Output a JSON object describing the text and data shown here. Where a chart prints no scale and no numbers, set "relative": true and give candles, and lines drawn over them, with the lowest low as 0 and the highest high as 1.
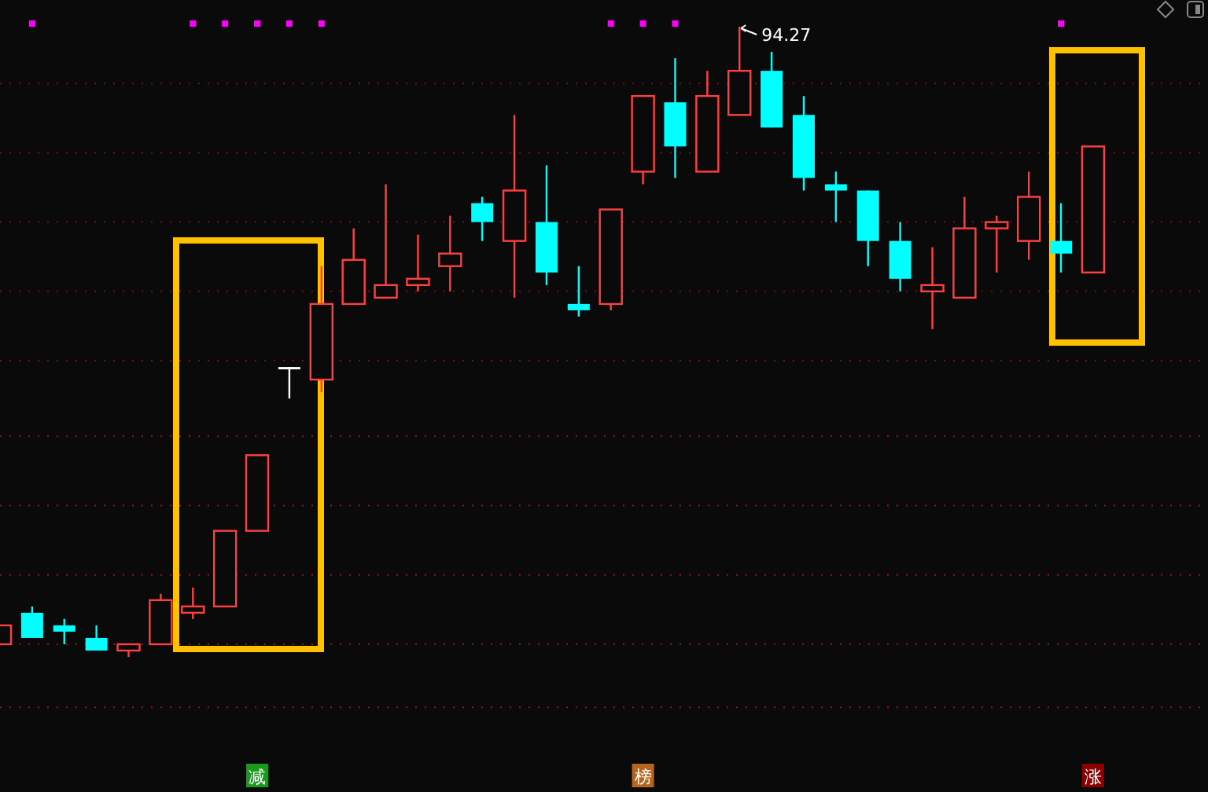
{
  "chart_data": {
    "type": "candlestick",
    "relative": true,
    "categories": [
      null,
      null,
      null,
      null,
      null,
      null,
      null,
      null,
      null,
      null,
      null,
      null,
      null,
      null,
      null,
      null,
      null,
      null,
      null,
      null,
      null,
      null,
      null,
      null,
      null,
      null,
      null,
      null,
      null,
      null,
      null,
      null,
      null,
      null,
      null
    ],
    "ohlc": [
      [
        0.02,
        0.05,
        0.02,
        0.05
      ],
      [
        0.07,
        0.08,
        0.03,
        0.03
      ],
      [
        0.05,
        0.06,
        0.02,
        0.04
      ],
      [
        0.03,
        0.05,
        0.01,
        0.01
      ],
      [
        0.01,
        0.02,
        0,
        0.02
      ],
      [
        0.02,
        0.1,
        0.02,
        0.09
      ],
      [
        0.07,
        0.11,
        0.06,
        0.08
      ],
      [
        0.08,
        0.2,
        0.08,
        0.2
      ],
      [
        0.2,
        0.32,
        0.2,
        0.32
      ],
      [
        0.46,
        0.46,
        0.41,
        0.46
      ],
      [
        0.44,
        0.62,
        0.42,
        0.56
      ],
      [
        0.56,
        0.68,
        0.56,
        0.63
      ],
      [
        0.57,
        0.75,
        0.57,
        0.59
      ],
      [
        0.59,
        0.67,
        0.58,
        0.6
      ],
      [
        0.62,
        0.7,
        0.58,
        0.64
      ],
      [
        0.72,
        0.73,
        0.66,
        0.69
      ],
      [
        0.66,
        0.86,
        0.57,
        0.74
      ],
      [
        0.69,
        0.78,
        0.59,
        0.61
      ],
      [
        0.56,
        0.62,
        0.54,
        0.55
      ],
      [
        0.56,
        0.71,
        0.55,
        0.71
      ],
      [
        0.77,
        0.89,
        0.75,
        0.89
      ],
      [
        0.88,
        0.95,
        0.76,
        0.81
      ],
      [
        0.77,
        0.93,
        0.77,
        0.89
      ],
      [
        0.86,
        1,
        0.86,
        0.93
      ],
      [
        0.93,
        0.96,
        0.84,
        0.84
      ],
      [
        0.86,
        0.89,
        0.74,
        0.76
      ],
      [
        0.75,
        0.77,
        0.69,
        0.74
      ],
      [
        0.74,
        0.74,
        0.62,
        0.66
      ],
      [
        0.66,
        0.69,
        0.58,
        0.6
      ],
      [
        0.58,
        0.65,
        0.52,
        0.59
      ],
      [
        0.57,
        0.73,
        0.57,
        0.68
      ],
      [
        0.68,
        0.7,
        0.61,
        0.69
      ],
      [
        0.66,
        0.77,
        0.63,
        0.73
      ],
      [
        0.66,
        0.72,
        0.61,
        0.64
      ],
      [
        0.61,
        0.81,
        0.61,
        0.81
      ]
    ],
    "colors": [
      "#ff4040",
      "#00ffff",
      "#00ffff",
      "#00ffff",
      "#ff4040",
      "#ff4040",
      "#ff4040",
      "#ff4040",
      "#ff4040",
      "#ffffff",
      "#ff4040",
      "#ff4040",
      "#ff4040",
      "#ff4040",
      "#ff4040",
      "#00ffff",
      "#ff4040",
      "#00ffff",
      "#00ffff",
      "#ff4040",
      "#ff4040",
      "#00ffff",
      "#ff4040",
      "#ff4040",
      "#00ffff",
      "#00ffff",
      "#00ffff",
      "#00ffff",
      "#00ffff",
      "#ff4040",
      "#ff4040",
      "#ff4040",
      "#ff4040",
      "#00ffff",
      "#ff4040"
    ],
    "ref_lines": [
      {
        "axis": "y",
        "value": 0.91,
        "color": "#7a1010",
        "line_style": "dotted"
      },
      {
        "axis": "y",
        "value": 0.8,
        "color": "#7a1010",
        "line_style": "dotted"
      },
      {
        "axis": "y",
        "value": 0.69,
        "color": "#7a1010",
        "line_style": "dotted"
      },
      {
        "axis": "y",
        "value": 0.58,
        "color": "#7a1010",
        "line_style": "dotted"
      },
      {
        "axis": "y",
        "value": 0.47,
        "color": "#7a1010",
        "line_style": "dotted"
      },
      {
        "axis": "y",
        "value": 0.35,
        "color": "#a01010",
        "line_style": "dotted"
      },
      {
        "axis": "y",
        "value": 0.24,
        "color": "#a01010",
        "line_style": "dotted"
      },
      {
        "axis": "y",
        "value": 0.13,
        "color": "#a01010",
        "line_style": "dotted"
      },
      {
        "axis": "y",
        "value": 0.02,
        "color": "#a01010",
        "line_style": "dotted"
      },
      {
        "axis": "y",
        "value": -0.08,
        "color": "#a01010",
        "line_style": "dotted"
      }
    ],
    "annotations": [
      "94.27",
      "减",
      "榜",
      "涨"
    ]
  }
}
